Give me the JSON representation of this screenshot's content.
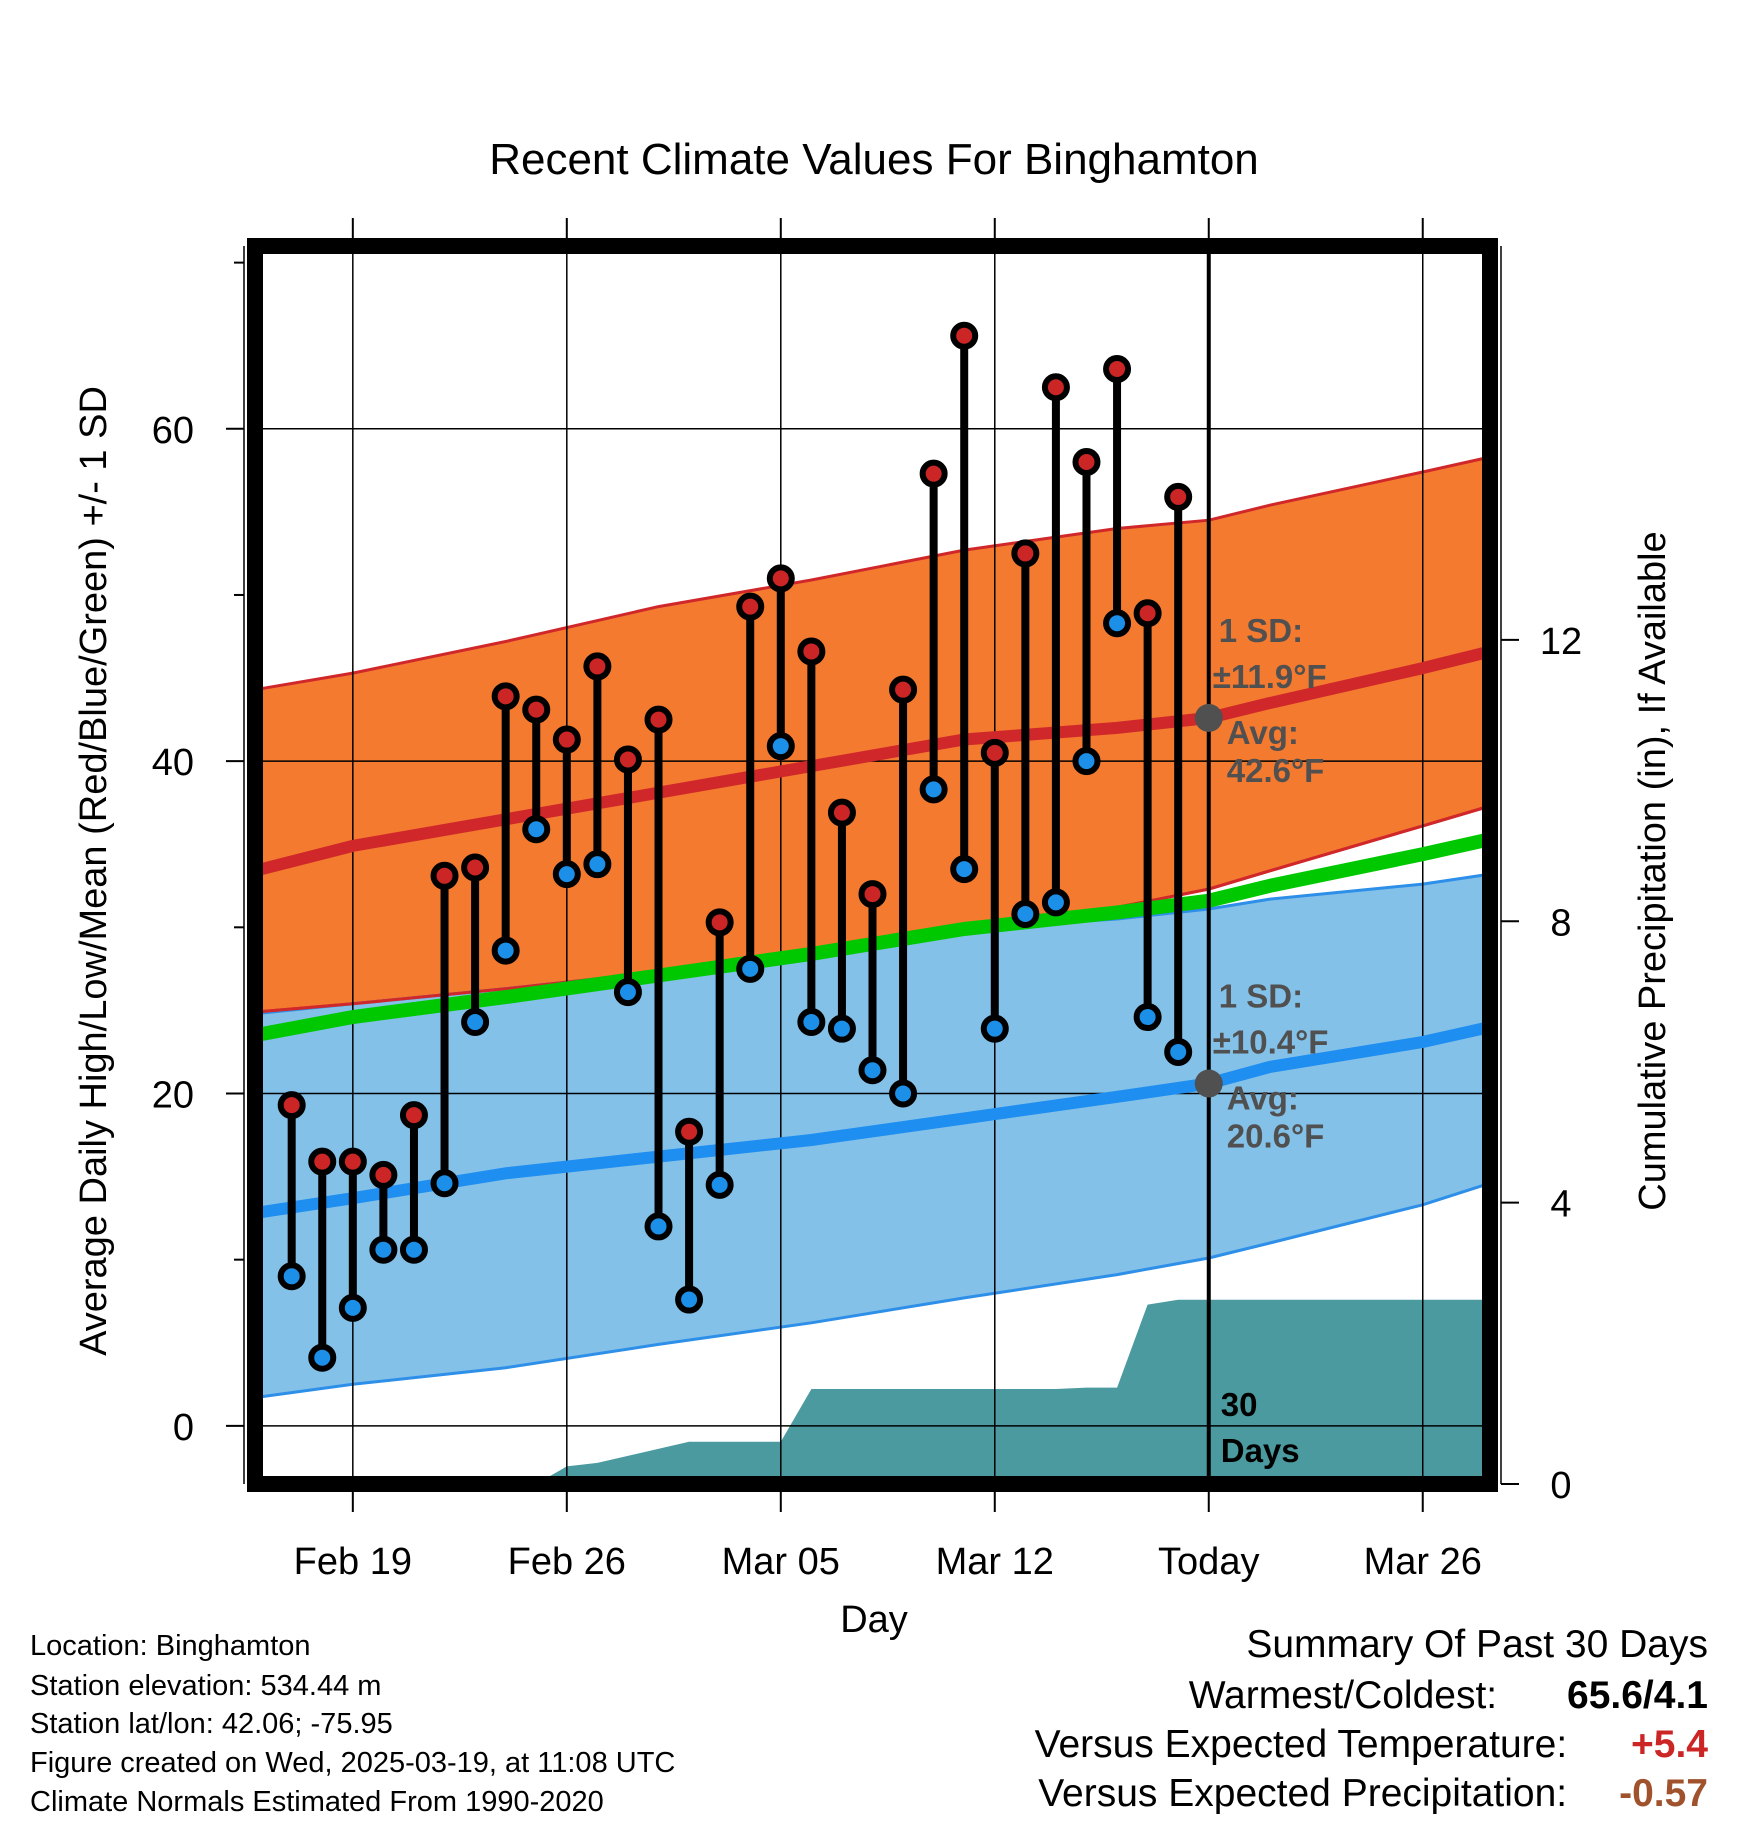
{
  "chart_data": {
    "type": "line",
    "title": "Recent Climate Values For Binghamton",
    "xlabel": "Day",
    "ylabel": "Average Daily High/Low/Mean (Red/Blue/Green) +/- 1 SD",
    "y2label": "Cumulative Precipitation (in), If Available",
    "x_tick_labels": [
      "Feb 19",
      "Feb 26",
      "Mar 05",
      "Mar 12",
      "Today",
      "Mar 26"
    ],
    "x_tick_days": [
      0,
      7,
      14,
      21,
      28,
      35
    ],
    "x_range_days": [
      -3.2,
      37.2
    ],
    "ylim": [
      -3.5,
      71
    ],
    "y_ticks": [
      0,
      20,
      40,
      60
    ],
    "y_minor_ticks": [
      10,
      30,
      50,
      70
    ],
    "y2lim": [
      0,
      17.6
    ],
    "y2_ticks": [
      0,
      4,
      8,
      12
    ],
    "grid": true,
    "today_day": 28,
    "daily_observations": {
      "days": [
        -2,
        -1,
        0,
        1,
        2,
        3,
        4,
        5,
        6,
        7,
        8,
        9,
        10,
        11,
        12,
        13,
        14,
        15,
        16,
        17,
        18,
        19,
        20,
        21,
        22,
        23,
        24,
        25,
        26,
        27
      ],
      "high": [
        19.3,
        15.9,
        15.9,
        15.1,
        18.7,
        33.1,
        33.6,
        43.9,
        43.1,
        41.3,
        45.7,
        40.1,
        42.5,
        17.7,
        30.3,
        49.3,
        51.0,
        46.6,
        36.9,
        32.0,
        44.3,
        57.3,
        65.6,
        40.5,
        52.5,
        62.5,
        58.0,
        63.6,
        48.9,
        55.9
      ],
      "low": [
        9.0,
        4.1,
        7.1,
        10.6,
        10.6,
        14.6,
        24.3,
        28.6,
        35.9,
        33.2,
        33.8,
        26.1,
        12.0,
        7.6,
        14.5,
        27.5,
        40.9,
        24.3,
        23.9,
        21.4,
        20.0,
        38.3,
        33.5,
        23.9,
        30.8,
        31.5,
        40.0,
        48.3,
        24.6,
        22.5
      ]
    },
    "normals": {
      "days": [
        -3.2,
        0,
        5,
        10,
        15,
        20,
        25,
        28,
        30,
        35,
        37.2
      ],
      "high_mean": [
        33.4,
        34.9,
        36.5,
        38.1,
        39.7,
        41.3,
        42.0,
        42.6,
        43.5,
        45.6,
        46.6
      ],
      "high_plus_sd": [
        44.3,
        45.3,
        47.2,
        49.3,
        50.9,
        52.7,
        54.0,
        54.5,
        55.4,
        57.4,
        58.3
      ],
      "high_minus_sd": [
        24.9,
        25.4,
        26.3,
        27.3,
        28.5,
        29.9,
        31.2,
        32.3,
        33.4,
        36.1,
        37.3
      ],
      "low_mean": [
        12.8,
        13.7,
        15.2,
        16.2,
        17.2,
        18.5,
        19.8,
        20.6,
        21.6,
        23.1,
        24.0
      ],
      "low_plus_sd": [
        24.8,
        25.4,
        26.3,
        27.3,
        28.5,
        29.9,
        30.5,
        31.1,
        31.7,
        32.6,
        33.2
      ],
      "low_minus_sd": [
        1.7,
        2.5,
        3.5,
        4.9,
        6.2,
        7.7,
        9.1,
        10.1,
        11.0,
        13.3,
        14.6
      ],
      "avg_mean": [
        23.5,
        24.6,
        25.8,
        27.1,
        28.4,
        29.9,
        30.9,
        31.6,
        32.5,
        34.4,
        35.3
      ]
    },
    "precip_cumulative": {
      "days": [
        -3.2,
        2,
        5,
        6,
        7,
        8,
        11,
        12,
        13,
        14,
        15,
        20,
        23,
        24,
        25,
        26,
        27,
        28,
        37.2
      ],
      "inches": [
        0,
        0,
        0,
        0.0,
        0.25,
        0.3,
        0.6,
        0.6,
        0.6,
        0.6,
        1.35,
        1.35,
        1.35,
        1.37,
        1.37,
        2.55,
        2.62,
        2.62,
        2.62
      ]
    },
    "annotations": {
      "high_sd_label": "1 SD:",
      "high_sd_value": "±11.9°F",
      "high_avg_label": "Avg:",
      "high_avg_value": "42.6°F",
      "high_avg_marker": 42.6,
      "low_sd_label": "1 SD:",
      "low_sd_value": "±10.4°F",
      "low_avg_label": "Avg:",
      "low_avg_value": "20.6°F",
      "low_avg_marker": 20.6,
      "days_label_1": "30",
      "days_label_2": "Days"
    },
    "colors": {
      "high_band": "#f47a30",
      "high_band_edge": "#d0282a",
      "high_mean": "#d0282a",
      "low_band": "#84c1e8",
      "low_band_edge": "#2e8fe8",
      "low_mean": "#1e8ef0",
      "avg_mean": "#00c800",
      "precip": "#4a9aa0",
      "high_dot": "#cc2525",
      "low_dot": "#1c8fe8",
      "annotation": "#505050"
    }
  },
  "info": {
    "location": "Location: Binghamton",
    "elevation": "Station elevation: 534.44 m",
    "latlon": "Station lat/lon: 42.06; -75.95",
    "created": "Figure created on Wed, 2025-03-19, at 11:08 UTC",
    "normals": "Climate Normals Estimated From 1990-2020"
  },
  "summary": {
    "title": "Summary Of Past 30 Days",
    "warm_cold_label": "Warmest/Coldest:",
    "warm_cold_value": "65.6/4.1",
    "temp_label": "Versus Expected Temperature:",
    "temp_value": "+5.4",
    "temp_color": "#cc2525",
    "precip_label": "Versus Expected Precipitation:",
    "precip_value": "-0.57",
    "precip_color": "#a0522d"
  }
}
